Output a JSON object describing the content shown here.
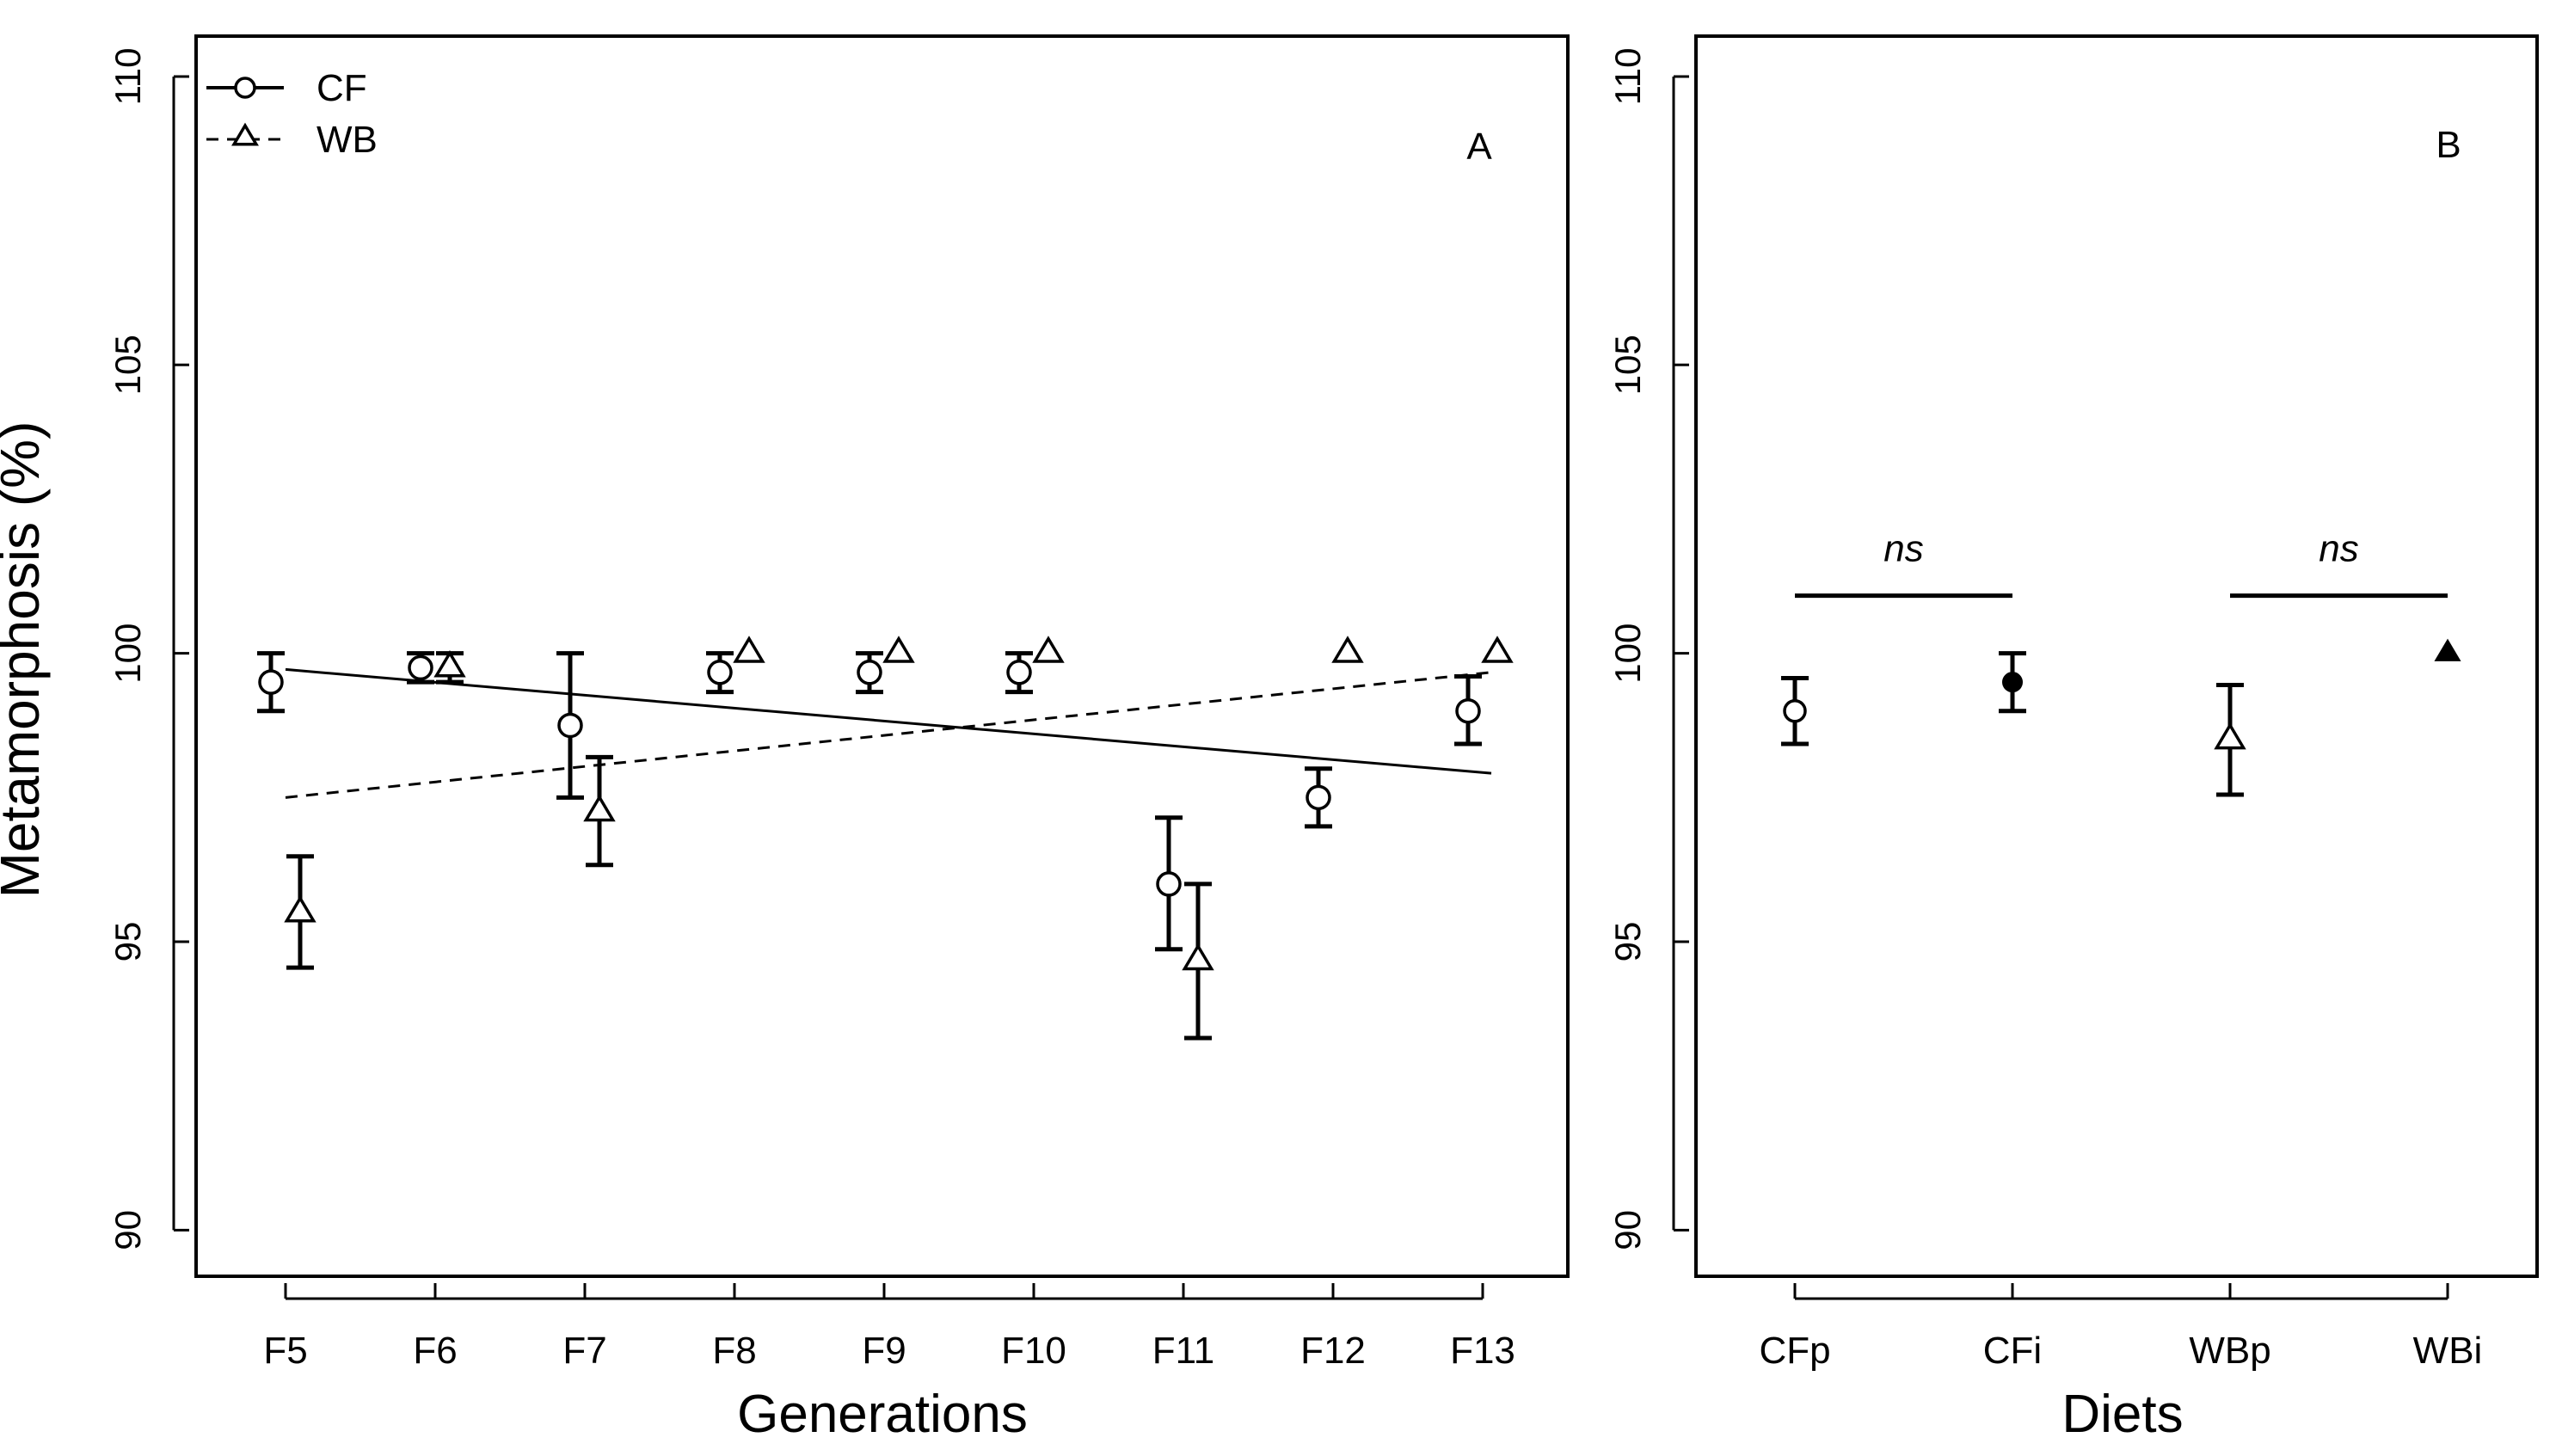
{
  "y_axis_label": "Metamorphosis (%)",
  "chart_data": [
    {
      "type": "scatter",
      "panel_label": "A",
      "xlabel": "Generations",
      "ylabel": "Metamorphosis (%)",
      "ylim": [
        89.2,
        110.7
      ],
      "yticks": [
        90,
        95,
        100,
        105,
        110
      ],
      "categories": [
        "F5",
        "F6",
        "F7",
        "F8",
        "F9",
        "F10",
        "F11",
        "F12",
        "F13"
      ],
      "legend": {
        "position": "top-left",
        "entries": [
          {
            "label": "CF",
            "marker": "circle",
            "line": "solid"
          },
          {
            "label": "WB",
            "marker": "triangle",
            "line": "dashed"
          }
        ]
      },
      "series": [
        {
          "name": "CF",
          "marker": "circle",
          "values": [
            99.5,
            99.75,
            98.75,
            99.67,
            99.67,
            99.67,
            96.0,
            97.5,
            99.0
          ],
          "error_low": [
            99.0,
            99.5,
            97.5,
            99.33,
            99.33,
            99.33,
            94.87,
            97.0,
            98.43
          ],
          "error_high": [
            100.0,
            100.0,
            100.0,
            100.0,
            100.0,
            100.0,
            97.15,
            98.0,
            99.6
          ],
          "trend": {
            "style": "solid",
            "start": 99.72,
            "end": 97.92
          }
        },
        {
          "name": "WB",
          "marker": "triangle",
          "values": [
            95.5,
            99.75,
            97.25,
            100.0,
            100.0,
            100.0,
            94.67,
            100.0,
            100.0
          ],
          "error_low": [
            94.55,
            99.5,
            96.33,
            null,
            null,
            null,
            93.33,
            null,
            null
          ],
          "error_high": [
            96.48,
            100.0,
            98.2,
            null,
            null,
            null,
            96.0,
            null,
            null
          ],
          "trend": {
            "style": "dashed",
            "start": 97.5,
            "end": 99.67
          }
        }
      ]
    },
    {
      "type": "scatter",
      "panel_label": "B",
      "xlabel": "Diets",
      "ylabel": "Metamorphosis (%)",
      "ylim": [
        89.2,
        110.7
      ],
      "yticks": [
        90,
        95,
        100,
        105,
        110
      ],
      "categories": [
        "CFp",
        "CFi",
        "WBp",
        "WBi"
      ],
      "points": [
        {
          "category": "CFp",
          "marker": "open-circle",
          "value": 99.0,
          "error_low": 98.43,
          "error_high": 99.57
        },
        {
          "category": "CFi",
          "marker": "filled-circle",
          "value": 99.5,
          "error_low": 99.0,
          "error_high": 100.0
        },
        {
          "category": "WBp",
          "marker": "open-triangle",
          "value": 98.5,
          "error_low": 97.55,
          "error_high": 99.45
        },
        {
          "category": "WBi",
          "marker": "filled-triangle",
          "value": 100.0,
          "error_low": null,
          "error_high": null
        }
      ],
      "annotations": [
        {
          "text": "ns",
          "from": "CFp",
          "to": "CFi",
          "level": 101.0
        },
        {
          "text": "ns",
          "from": "WBp",
          "to": "WBi",
          "level": 101.0
        }
      ]
    }
  ]
}
